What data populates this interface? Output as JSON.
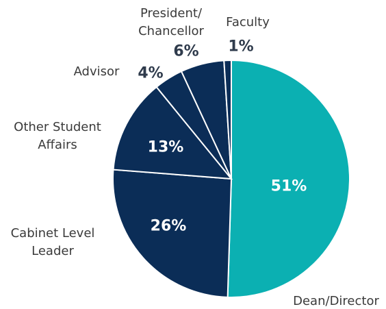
{
  "chart_data": {
    "type": "pie",
    "categories": [
      "Dean/Director",
      "Cabinet Level Leader",
      "Other Student Affairs",
      "Advisor",
      "President/ Chancellor",
      "Faculty"
    ],
    "values": [
      51,
      26,
      13,
      4,
      6,
      1
    ],
    "value_labels": [
      "51%",
      "26%",
      "13%",
      "4%",
      "6%",
      "1%"
    ],
    "colors": [
      "#0bb0b2",
      "#0b2d57",
      "#0b2d57",
      "#0b2d57",
      "#0b2d57",
      "#0b2d57"
    ]
  }
}
